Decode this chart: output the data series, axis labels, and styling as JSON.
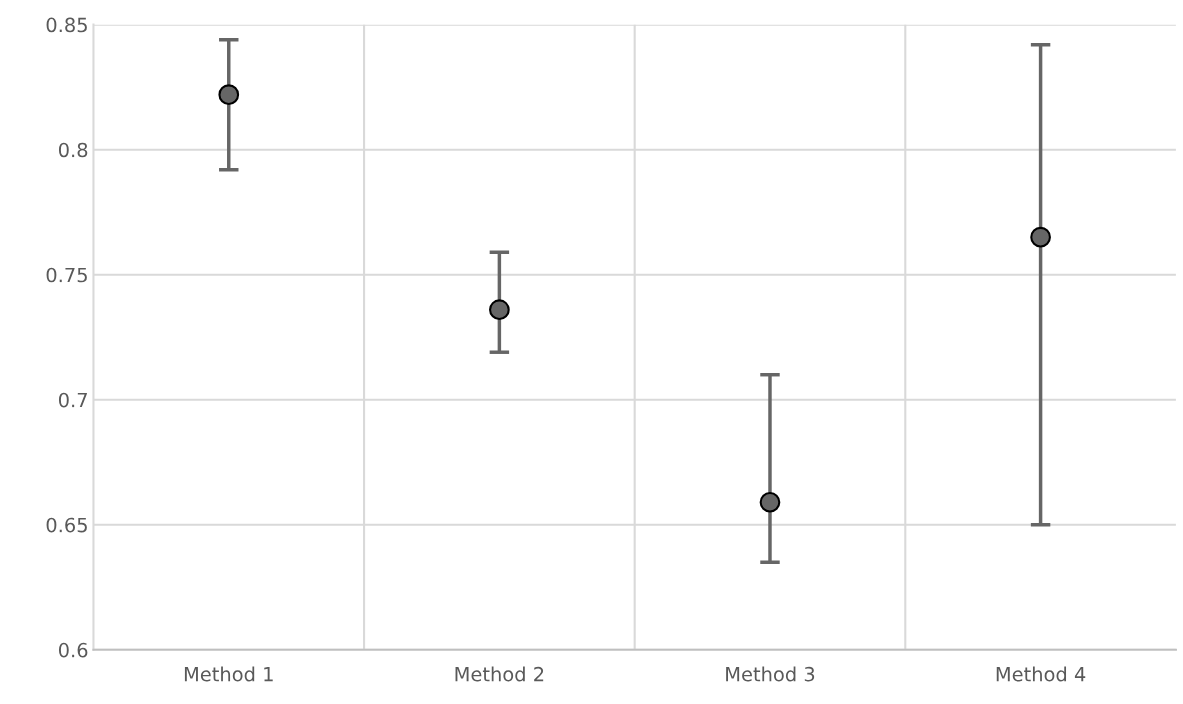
{
  "chart_data": {
    "type": "scatter",
    "categories": [
      "Method 1",
      "Method 2",
      "Method 3",
      "Method 4"
    ],
    "series": [
      {
        "color": "#666666",
        "values": [
          0.822,
          0.736,
          0.659,
          0.765
        ],
        "errors": [
          [
            0.792,
            0.844
          ],
          [
            0.719,
            0.759
          ],
          [
            0.635,
            0.71
          ],
          [
            0.65,
            0.842
          ]
        ]
      }
    ],
    "ylim": [
      0.6,
      0.85
    ],
    "yticks": [
      0.6,
      0.65,
      0.7,
      0.75,
      0.8,
      0.85
    ],
    "grid": true,
    "marker": "circle"
  }
}
